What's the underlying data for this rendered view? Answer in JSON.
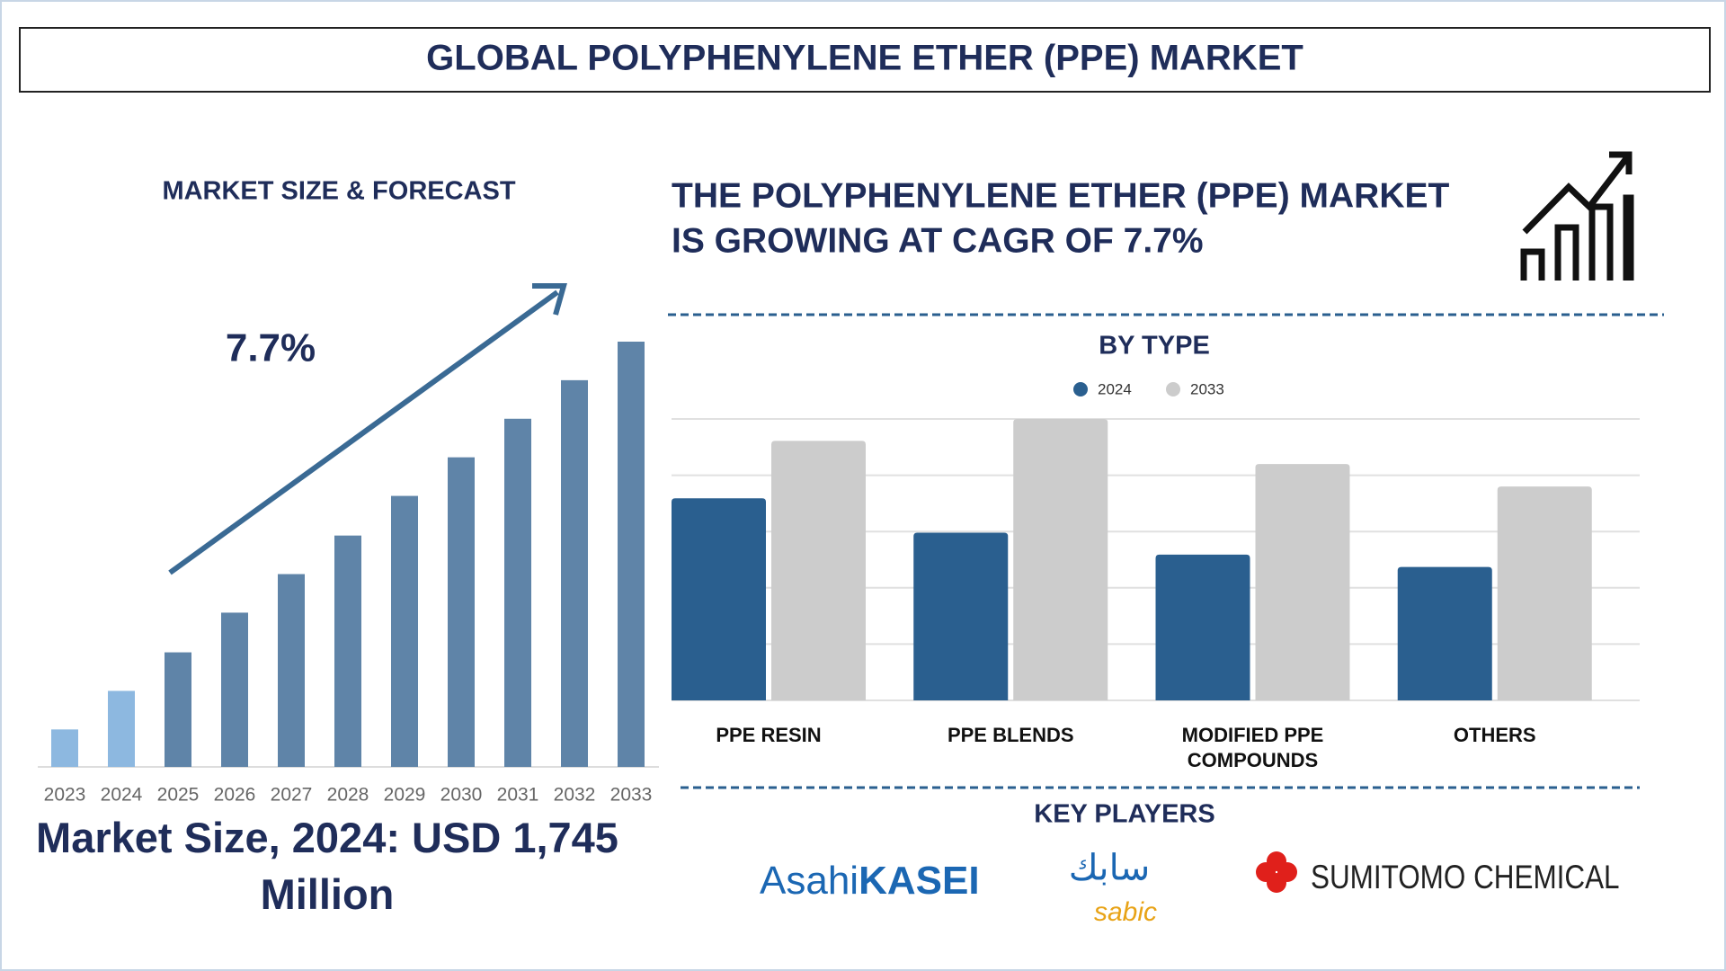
{
  "title": "GLOBAL POLYPHENYLENE ETHER (PPE) MARKET",
  "market_size_title": "MARKET SIZE & FORECAST",
  "cagr_label": "7.7%",
  "market_size_text": "Market Size, 2024: USD 1,745 Million",
  "headline": [
    "THE POLYPHENYLENE ETHER (PPE) MARKET",
    "IS GROWING AT CAGR OF 7.7%"
  ],
  "key_players_title": "KEY PLAYERS",
  "key_players": [
    [
      "Asahi",
      "KASEI"
    ],
    [
      "سابك",
      "sabic"
    ],
    [
      "SUMITOMO CHEMICAL"
    ]
  ],
  "chart_data": [
    {
      "type": "bar",
      "categories": [
        "2023",
        "2024",
        "2025",
        "2026",
        "2027",
        "2028",
        "2029",
        "2030",
        "2031",
        "2032",
        "2033"
      ],
      "values": [
        860,
        1745,
        2630,
        3541,
        4426,
        5311,
        6221,
        7107,
        7992,
        8877,
        9762
      ],
      "colors": [
        "#8db8e0",
        "#8db8e0",
        "#5f84a8",
        "#5f84a8",
        "#5f84a8",
        "#5f84a8",
        "#5f84a8",
        "#5f84a8",
        "#5f84a8",
        "#5f84a8",
        "#5f84a8"
      ]
    },
    {
      "type": "grouped-bar",
      "title": "BY TYPE",
      "categories": [
        "PPE RESIN",
        "PPE BLENDS",
        "MODIFIED PPE COMPOUNDS",
        "OTHERS"
      ],
      "series": [
        {
          "name": "2024",
          "color": "#2a5f8f",
          "values": [
            3.59,
            2.98,
            2.59,
            2.37
          ]
        },
        {
          "name": "2033",
          "color": "#cccccc",
          "values": [
            4.61,
            5.0,
            4.2,
            3.8
          ]
        }
      ],
      "ylim": [
        0,
        5
      ],
      "yticks": [
        0,
        1,
        2,
        3,
        4,
        5
      ],
      "grid": true,
      "show_tick_labels": false
    }
  ]
}
